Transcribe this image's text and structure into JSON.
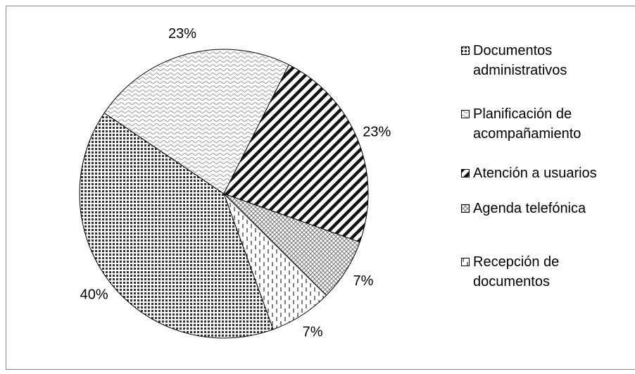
{
  "chart_data": {
    "type": "pie",
    "categories": [
      "Documentos administrativos",
      "Planificación de acompañamiento",
      "Atención a usuarios",
      "Agenda telefónica",
      "Recepción de documentos"
    ],
    "values": [
      40,
      23,
      23,
      7,
      7
    ],
    "value_labels": [
      "40%",
      "23%",
      "23%",
      "7%",
      "7%"
    ],
    "start_angle": 160,
    "legend": "right"
  }
}
